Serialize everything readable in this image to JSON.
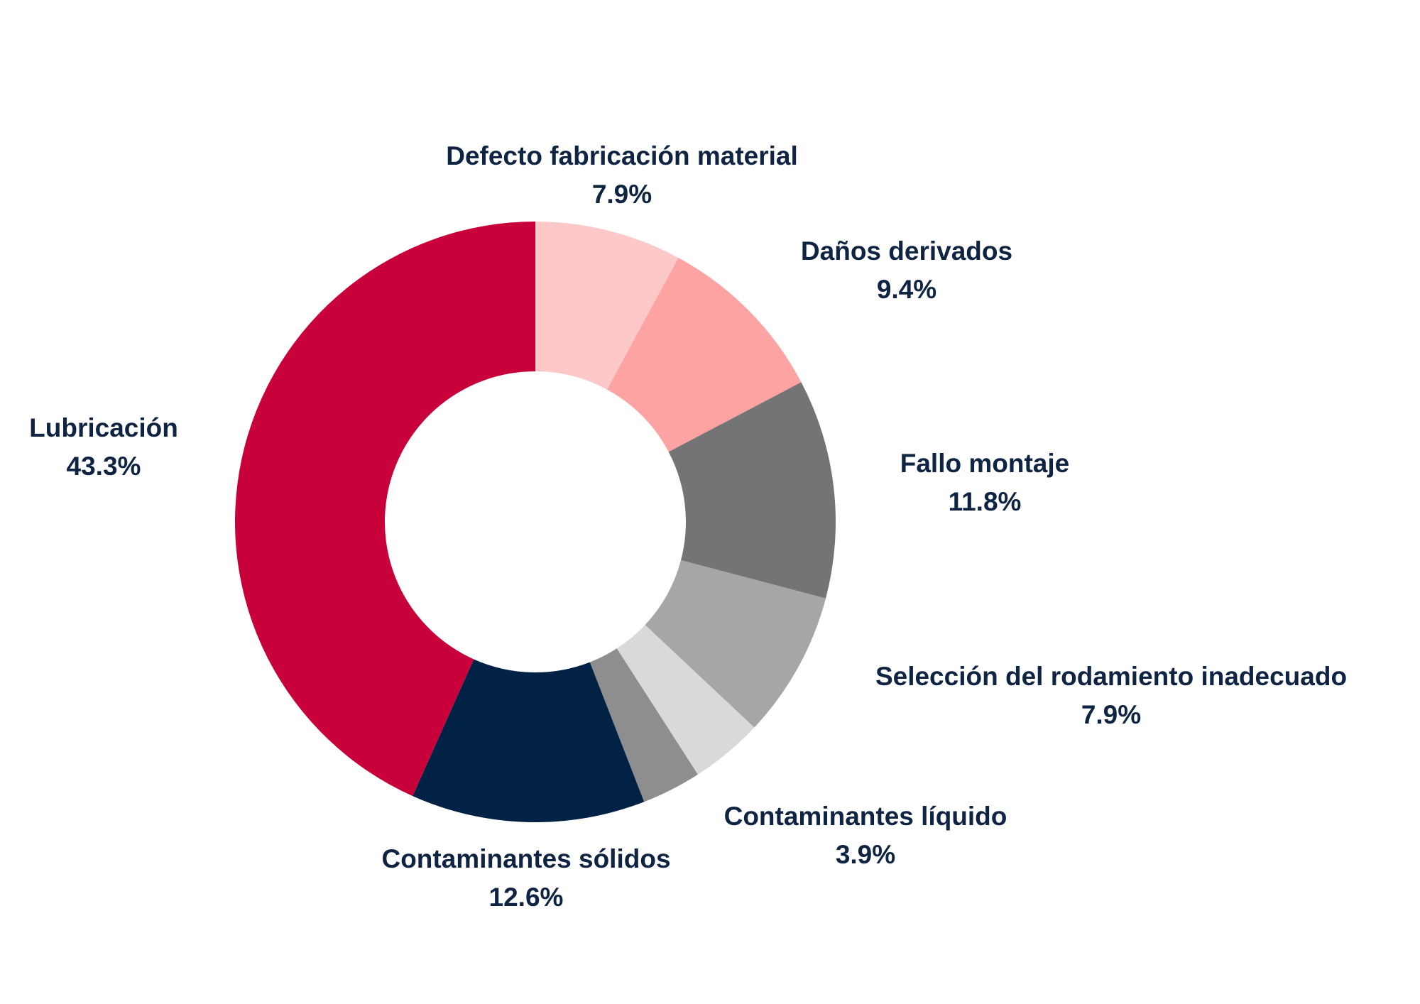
{
  "chart_data": {
    "type": "pie",
    "variant": "donut",
    "title": "",
    "slices": [
      {
        "label": "Defecto fabricación material",
        "value": 7.9,
        "value_label": "7.9%",
        "color": "#FDC8C8"
      },
      {
        "label": "Daños derivados",
        "value": 9.4,
        "value_label": "9.4%",
        "color": "#FDA3A3"
      },
      {
        "label": "Fallo montaje",
        "value": 11.8,
        "value_label": "11.8%",
        "color": "#747474"
      },
      {
        "label": "Selección del rodamiento inadecuado",
        "value": 7.9,
        "value_label": "7.9%",
        "color": "#A6A6A6"
      },
      {
        "label": "Contaminantes líquido",
        "value": 3.9,
        "value_label": "3.9%",
        "color": "#D9D9D9"
      },
      {
        "label": "",
        "value": 3.2,
        "value_label": "",
        "color": "#8E8E8E"
      },
      {
        "label": "Contaminantes sólidos",
        "value": 12.6,
        "value_label": "12.6%",
        "color": "#012245"
      },
      {
        "label": "Lubricación",
        "value": 43.3,
        "value_label": "43.3%",
        "color": "#C8013A"
      }
    ],
    "start_angle": "top",
    "direction": "clockwise",
    "label_color": "#0F2342"
  }
}
